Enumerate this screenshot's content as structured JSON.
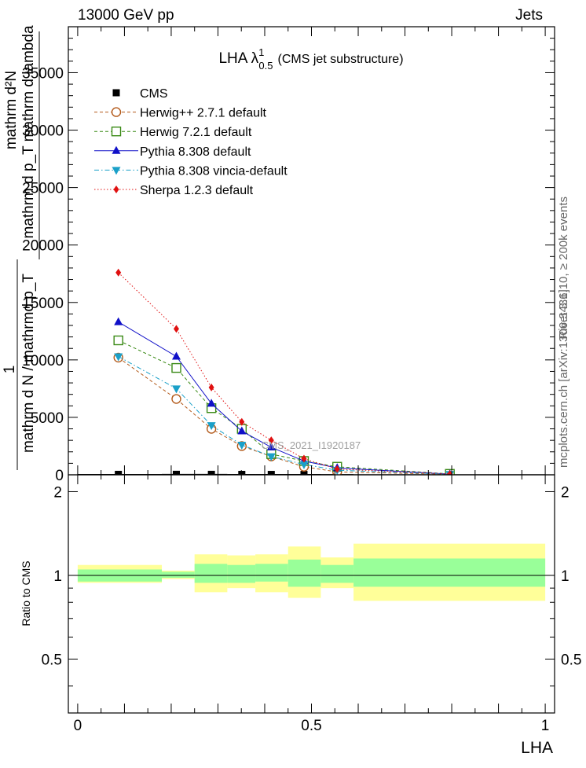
{
  "header": {
    "left": "13000 GeV pp",
    "right": "Jets"
  },
  "side_labels": {
    "top": "Rivet 3.1.10, ≥ 200k events",
    "bottom": "mcplots.cern.ch [arXiv:1306.3436]"
  },
  "chart_data": [
    {
      "type": "line",
      "title": "LHA",
      "title_main": "LHA λ",
      "title_sup": "1",
      "title_sub": "0.5",
      "title_suffix": "(CMS jet substructure)",
      "ylabel_lines": [
        "mathrm d²N",
        "mathrm d p_T mathrm d lambda",
        "1",
        "mathrm d N / mathrmd p_T"
      ],
      "watermark": "CMS_2021_I1920187",
      "xlim": [
        -0.02,
        1.02
      ],
      "ylim": [
        0,
        39000
      ],
      "yticks": [
        0,
        5000,
        10000,
        15000,
        20000,
        25000,
        30000,
        35000
      ],
      "ytick_labels": [
        "0",
        "5000",
        "10000",
        "15000",
        "20000",
        "25000",
        "30000",
        "35000"
      ],
      "legend_position": "top-left",
      "bins": [
        [
          0.0,
          0.18
        ],
        [
          0.18,
          0.25
        ],
        [
          0.25,
          0.32
        ],
        [
          0.32,
          0.38
        ],
        [
          0.38,
          0.45
        ],
        [
          0.45,
          0.52
        ],
        [
          0.52,
          0.59
        ],
        [
          0.59,
          1.0
        ]
      ],
      "x": [
        0.087,
        0.211,
        0.286,
        0.351,
        0.414,
        0.484,
        0.555,
        0.796
      ],
      "series": [
        {
          "name": "CMS",
          "color": "#000000",
          "marker": "square-filled",
          "line": "none",
          "values": [
            38,
            42,
            40,
            35,
            32,
            30,
            28,
            10
          ]
        },
        {
          "name": "Herwig++ 2.7.1 default",
          "color": "#b35a1a",
          "marker": "circle-open",
          "line": "dashed",
          "values": [
            10200,
            6600,
            4000,
            2500,
            1600,
            700,
            250,
            40
          ]
        },
        {
          "name": "Herwig 7.2.1 default",
          "color": "#3a8a16",
          "marker": "square-open",
          "line": "dashed",
          "values": [
            11700,
            9300,
            5800,
            4000,
            1800,
            1200,
            700,
            80
          ]
        },
        {
          "name": "Pythia 8.308 default",
          "color": "#1010c8",
          "marker": "triangle-up",
          "line": "solid",
          "values": [
            13300,
            10300,
            6200,
            3800,
            2400,
            1200,
            600,
            60
          ]
        },
        {
          "name": "Pythia 8.308 vincia-default",
          "color": "#1aa0c8",
          "marker": "triangle-down",
          "line": "dashdot",
          "values": [
            10300,
            7500,
            4300,
            2600,
            1600,
            900,
            400,
            50
          ]
        },
        {
          "name": "Sherpa 1.2.3 default",
          "color": "#e01010",
          "marker": "diamond",
          "line": "dotted",
          "values": [
            17600,
            12700,
            7600,
            4600,
            3000,
            1400,
            500,
            70
          ]
        }
      ]
    },
    {
      "type": "line",
      "ylabel": "Ratio to CMS",
      "xlabel": "LHA",
      "xlim": [
        -0.02,
        1.02
      ],
      "ylim": [
        0.32,
        2.3
      ],
      "yticks": [
        0.5,
        1,
        2
      ],
      "ytick_labels": [
        "0.5",
        "1",
        "2"
      ],
      "xticks": [
        0,
        0.5,
        1
      ],
      "xtick_labels": [
        "0",
        "0.5",
        "1"
      ],
      "reference_value": 1,
      "bands": {
        "stat_color": "#99ff99",
        "total_color": "#ffff99",
        "stat": [
          [
            0.95,
            1.05
          ],
          [
            0.98,
            1.03
          ],
          [
            0.94,
            1.1
          ],
          [
            0.94,
            1.09
          ],
          [
            0.95,
            1.1
          ],
          [
            0.91,
            1.14
          ],
          [
            0.94,
            1.09
          ],
          [
            0.91,
            1.15
          ]
        ],
        "total": [
          [
            0.94,
            1.09
          ],
          [
            0.97,
            1.04
          ],
          [
            0.87,
            1.19
          ],
          [
            0.9,
            1.18
          ],
          [
            0.87,
            1.19
          ],
          [
            0.83,
            1.27
          ],
          [
            0.9,
            1.16
          ],
          [
            0.81,
            1.3
          ]
        ]
      }
    }
  ]
}
